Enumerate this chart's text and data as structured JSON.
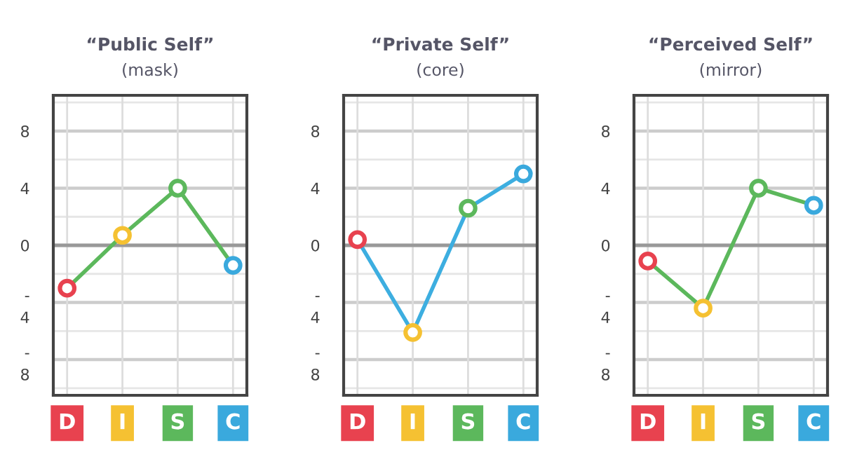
{
  "chart_data": [
    {
      "type": "line",
      "title": "“Public Self”",
      "subtitle": "(mask)",
      "categories": [
        "D",
        "I",
        "S",
        "C"
      ],
      "series": [
        {
          "color": "#5cb85c",
          "colors": [
            "#e8424f",
            "#f5c132",
            "#5cb85c",
            "#3aa9dd"
          ],
          "values": [
            -3.0,
            0.7,
            4.0,
            -1.4
          ]
        }
      ],
      "ylim": [
        -10.5,
        10.5
      ],
      "yticks": [
        {
          "value": 10,
          "label": null
        },
        8,
        {
          "value": 6,
          "label": null
        },
        4,
        {
          "value": 2,
          "label": null
        },
        0,
        {
          "value": -2,
          "label": null
        },
        {
          "value": -4,
          "label": "-\n4"
        },
        {
          "value": -6,
          "label": null
        },
        {
          "value": -8,
          "label": "-\n8"
        },
        {
          "value": -10,
          "label": null
        }
      ],
      "ref_lines": [
        {
          "axis": "y",
          "value": 0,
          "color": "#999999"
        }
      ],
      "grid": true,
      "marker": "circle",
      "line_style": "solid",
      "legend": false
    },
    {
      "type": "line",
      "title": "“Private Self”",
      "subtitle": "(core)",
      "categories": [
        "D",
        "I",
        "S",
        "C"
      ],
      "series": [
        {
          "color": "#3daee0",
          "colors": [
            "#e8424f",
            "#f5c132",
            "#5cb85c",
            "#3aa9dd"
          ],
          "values": [
            0.4,
            -6.1,
            2.6,
            5.0
          ]
        }
      ],
      "ylim": [
        -10.5,
        10.5
      ],
      "yticks": [
        {
          "value": 10,
          "label": null
        },
        8,
        {
          "value": 6,
          "label": null
        },
        4,
        {
          "value": 2,
          "label": null
        },
        0,
        {
          "value": -2,
          "label": null
        },
        {
          "value": -4,
          "label": "-\n4"
        },
        {
          "value": -6,
          "label": null
        },
        {
          "value": -8,
          "label": "-\n8"
        },
        {
          "value": -10,
          "label": null
        }
      ],
      "ref_lines": [
        {
          "axis": "y",
          "value": 0,
          "color": "#999999"
        }
      ],
      "grid": true,
      "marker": "circle",
      "line_style": "solid",
      "legend": false
    },
    {
      "type": "line",
      "title": "“Perceived Self”",
      "subtitle": "(mirror)",
      "categories": [
        "D",
        "I",
        "S",
        "C"
      ],
      "series": [
        {
          "color": "#5cb85c",
          "colors": [
            "#e8424f",
            "#f5c132",
            "#5cb85c",
            "#3aa9dd"
          ],
          "values": [
            -1.1,
            -4.4,
            4.0,
            2.8
          ]
        }
      ],
      "ylim": [
        -10.5,
        10.5
      ],
      "yticks": [
        {
          "value": 10,
          "label": null
        },
        8,
        {
          "value": 6,
          "label": null
        },
        4,
        {
          "value": 2,
          "label": null
        },
        0,
        {
          "value": -2,
          "label": null
        },
        {
          "value": -4,
          "label": "-\n4"
        },
        {
          "value": -6,
          "label": null
        },
        {
          "value": -8,
          "label": "-\n8"
        },
        {
          "value": -10,
          "label": null
        }
      ],
      "ref_lines": [
        {
          "axis": "y",
          "value": 0,
          "color": "#999999"
        }
      ],
      "grid": true,
      "marker": "circle",
      "line_style": "solid",
      "legend": false
    }
  ]
}
